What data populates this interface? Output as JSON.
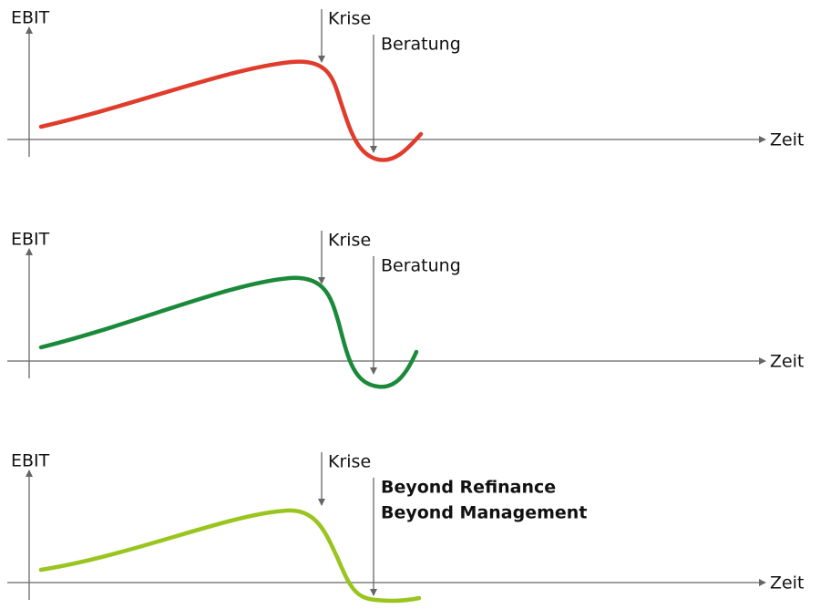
{
  "panels": [
    {
      "y_label": "EBIT",
      "x_label": "Zeit",
      "event": "Krise",
      "response": [
        "Beratung"
      ],
      "response_bold": false,
      "color": "#e03c2c"
    },
    {
      "y_label": "EBIT",
      "x_label": "Zeit",
      "event": "Krise",
      "response": [
        "Beratung"
      ],
      "response_bold": false,
      "color": "#1a8a3a"
    },
    {
      "y_label": "EBIT",
      "x_label": "Zeit",
      "event": "Krise",
      "response": [
        "Beyond Refinance",
        "Beyond Management"
      ],
      "response_bold": true,
      "color": "#9ac41e"
    }
  ]
}
